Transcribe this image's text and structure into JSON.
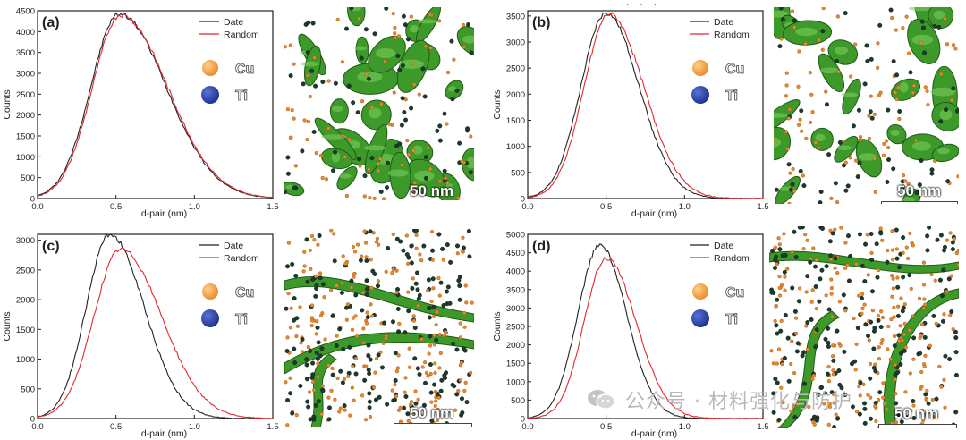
{
  "legend": {
    "date": "Date",
    "random": "Random"
  },
  "markers": {
    "cu": "Cu",
    "ti": "Ti"
  },
  "scalebar": "50 nm",
  "colors": {
    "date": "#222222",
    "random": "#e0282c",
    "cu": "#e8892a",
    "ti": "#1c2f8c",
    "iso": "#3d9a2a"
  },
  "watermark": {
    "text": "公众号 · 材料强化与防护",
    "icon": "wechat-icon"
  },
  "chart_data": [
    {
      "type": "line",
      "panel_label": "(a)",
      "xlabel": "d-pair (nm)",
      "ylabel": "Counts",
      "xlim": [
        0,
        1.5
      ],
      "ylim": [
        0,
        4500
      ],
      "xticks": [
        "0.0",
        "0.5",
        "1.0",
        "1.5"
      ],
      "yticks": [
        "0",
        "500",
        "1000",
        "1500",
        "2000",
        "2500",
        "3000",
        "3500",
        "4000",
        "4500"
      ],
      "series": [
        {
          "name": "Date",
          "peak": 4430,
          "mu": 0.52,
          "sigmaL": 0.18,
          "sigmaR": 0.3
        },
        {
          "name": "Random",
          "peak": 4400,
          "mu": 0.53,
          "sigmaL": 0.18,
          "sigmaR": 0.3
        }
      ]
    },
    {
      "type": "line",
      "panel_label": "(b)",
      "xlabel": "d-pair (nm)",
      "ylabel": "Counts",
      "xlim": [
        0,
        1.5
      ],
      "ylim": [
        0,
        3600
      ],
      "xticks": [
        "0.0",
        "0.5",
        "1.0",
        "1.5"
      ],
      "yticks": [
        "0",
        "500",
        "1000",
        "1500",
        "2000",
        "2500",
        "3000",
        "3500"
      ],
      "series": [
        {
          "name": "Date",
          "peak": 3560,
          "mu": 0.5,
          "sigmaL": 0.16,
          "sigmaR": 0.21
        },
        {
          "name": "Random",
          "peak": 3540,
          "mu": 0.52,
          "sigmaL": 0.16,
          "sigmaR": 0.22
        }
      ]
    },
    {
      "type": "line",
      "panel_label": "(c)",
      "xlabel": "d-pair (nm)",
      "ylabel": "Counts",
      "xlim": [
        0,
        1.5
      ],
      "ylim": [
        0,
        3100
      ],
      "xticks": [
        "0.0",
        "0.5",
        "1.0",
        "1.5"
      ],
      "yticks": [
        "0",
        "500",
        "1000",
        "1500",
        "2000",
        "2500",
        "3000"
      ],
      "series": [
        {
          "name": "Date",
          "peak": 3100,
          "mu": 0.46,
          "sigmaL": 0.15,
          "sigmaR": 0.22
        },
        {
          "name": "Random",
          "peak": 2850,
          "mu": 0.53,
          "sigmaL": 0.17,
          "sigmaR": 0.26
        }
      ]
    },
    {
      "type": "line",
      "panel_label": "(d)",
      "xlabel": "d-pair (nm)",
      "ylabel": "Counts",
      "xlim": [
        0,
        1.5
      ],
      "ylim": [
        0,
        5000
      ],
      "xticks": [
        "0.0",
        "0.5",
        "1.0",
        "1.5"
      ],
      "yticks": [
        "0",
        "500",
        "1000",
        "1500",
        "2000",
        "2500",
        "3000",
        "3500",
        "4000",
        "4500",
        "5000"
      ],
      "series": [
        {
          "name": "Date",
          "peak": 4700,
          "mu": 0.46,
          "sigmaL": 0.14,
          "sigmaR": 0.17
        },
        {
          "name": "Random",
          "peak": 4350,
          "mu": 0.5,
          "sigmaL": 0.14,
          "sigmaR": 0.19
        }
      ]
    }
  ]
}
